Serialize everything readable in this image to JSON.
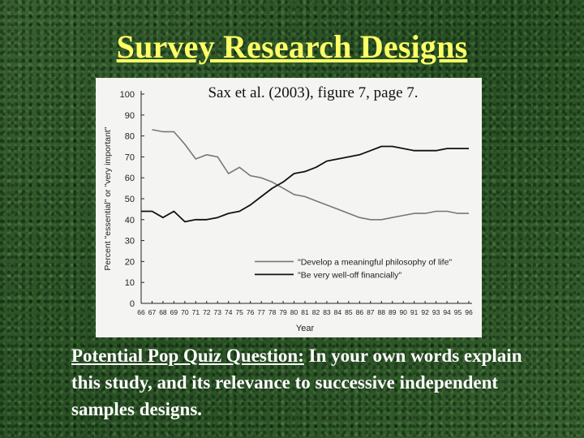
{
  "slide": {
    "title": "Survey Research Designs",
    "caption": "Sax et al. (2003), figure 7, page 7.",
    "quiz_lead": "Potential Pop Quiz Question:",
    "quiz_text": " In your own words explain this study, and its relevance to successive independent samples designs."
  },
  "chart_data": {
    "type": "line",
    "title": "",
    "xlabel": "Year",
    "ylabel": "Percent \"essential\" or \"very important\"",
    "ylim": [
      0,
      100
    ],
    "yticks": [
      0,
      10,
      20,
      30,
      40,
      50,
      60,
      70,
      80,
      90,
      100
    ],
    "x": [
      "66",
      "67",
      "68",
      "69",
      "70",
      "71",
      "72",
      "73",
      "74",
      "75",
      "76",
      "77",
      "78",
      "79",
      "80",
      "81",
      "82",
      "83",
      "84",
      "85",
      "86",
      "87",
      "88",
      "89",
      "90",
      "91",
      "92",
      "93",
      "94",
      "95",
      "96"
    ],
    "series": [
      {
        "name": "\"Develop a meaningful philosophy of life\"",
        "line_style": "gray",
        "values": [
          null,
          83,
          82,
          82,
          76,
          69,
          71,
          70,
          62,
          65,
          61,
          60,
          58,
          55,
          52,
          51,
          49,
          47,
          45,
          43,
          41,
          40,
          40,
          41,
          42,
          43,
          43,
          44,
          44,
          43,
          43
        ]
      },
      {
        "name": "\"Be very well-off financially\"",
        "line_style": "black",
        "values": [
          44,
          44,
          41,
          44,
          39,
          40,
          40,
          41,
          43,
          44,
          47,
          51,
          55,
          58,
          62,
          63,
          65,
          68,
          69,
          70,
          71,
          73,
          75,
          75,
          74,
          73,
          73,
          73,
          74,
          74,
          74
        ]
      }
    ]
  }
}
